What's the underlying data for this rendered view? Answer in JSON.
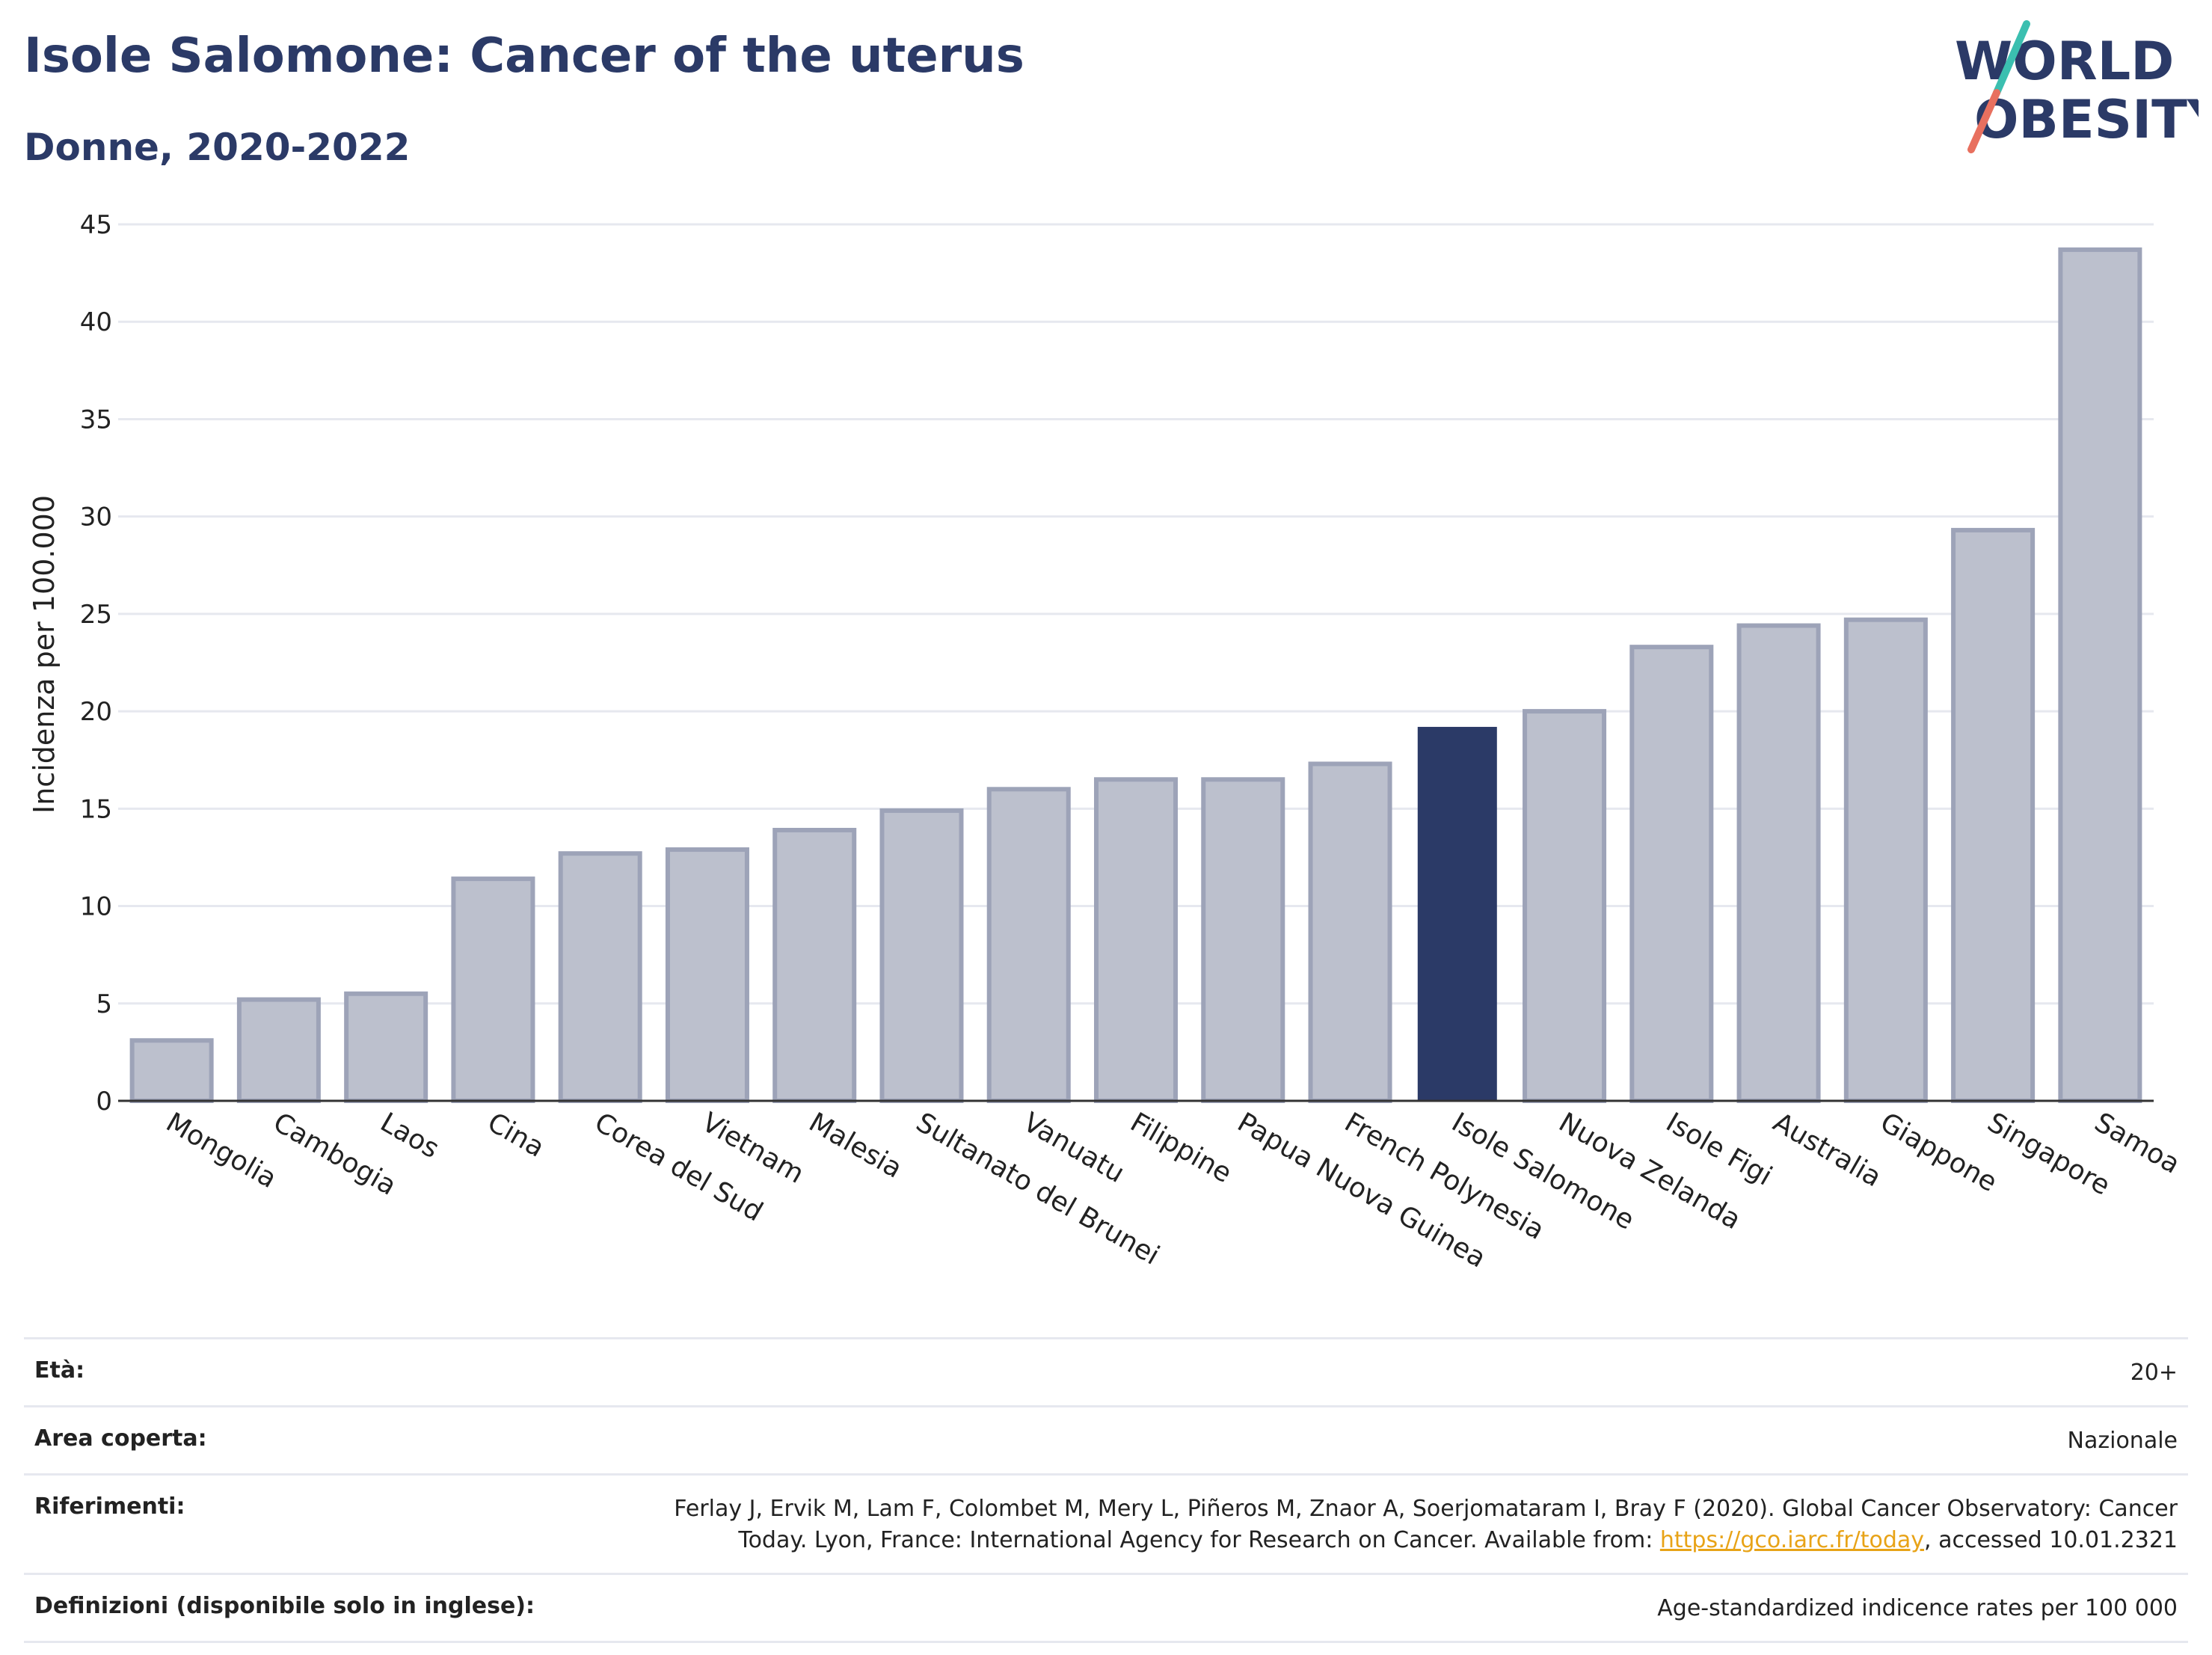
{
  "header": {
    "title": "Isole Salomone: Cancer of the uterus",
    "subtitle": "Donne, 2020-2022"
  },
  "logo": {
    "line1": "WORLD",
    "line2": "OBESITY",
    "accent_teal": "#3bbfb0",
    "accent_coral": "#e8705f",
    "text_color": "#2b3a67"
  },
  "colors": {
    "highlight_bar": "#2b3a67",
    "default_bar_fill": "#bcc0cd",
    "default_bar_stroke": "#9da3b8",
    "grid": "#e6e8ef",
    "axis": "#333333"
  },
  "chart_data": {
    "type": "bar",
    "title": "Isole Salomone: Cancer of the uterus",
    "subtitle": "Donne, 2020-2022",
    "xlabel": "",
    "ylabel": "Incidenza per 100.000",
    "ylim": [
      0,
      45
    ],
    "yticks": [
      0,
      5,
      10,
      15,
      20,
      25,
      30,
      35,
      40,
      45
    ],
    "grid": true,
    "highlight": "Isole Salomone",
    "categories": [
      "Mongolia",
      "Cambogia",
      "Laos",
      "Cina",
      "Corea del Sud",
      "Vietnam",
      "Malesia",
      "Sultanato del Brunei",
      "Vanuatu",
      "Filippine",
      "Papua Nuova Guinea",
      "French Polynesia",
      "Isole Salomone",
      "Nuova Zelanda",
      "Isole Figi",
      "Australia",
      "Giappone",
      "Singapore",
      "Samoa"
    ],
    "values": [
      3.1,
      5.2,
      5.5,
      11.4,
      12.7,
      12.9,
      13.9,
      14.9,
      16.0,
      16.5,
      16.5,
      17.3,
      19.2,
      20.0,
      23.3,
      24.4,
      24.7,
      29.3,
      43.7
    ]
  },
  "info": {
    "rows": [
      {
        "label": "Età:",
        "value": "20+"
      },
      {
        "label": "Area coperta:",
        "value": "Nazionale"
      },
      {
        "label": "Riferimenti:",
        "value_line1": "Ferlay J, Ervik M, Lam F, Colombet M, Mery L, Piñeros M, Znaor A, Soerjomataram I, Bray F (2020). Global Cancer Observatory: Cancer",
        "value_line2_pre": "Today. Lyon, France: International Agency for Research on Cancer. Available from: ",
        "link": "https://gco.iarc.fr/today",
        "value_line2_post": ", accessed 10.01.2321"
      },
      {
        "label": "Definizioni (disponibile solo in inglese):",
        "value": "Age-standardized indicence rates per 100 000"
      }
    ]
  }
}
